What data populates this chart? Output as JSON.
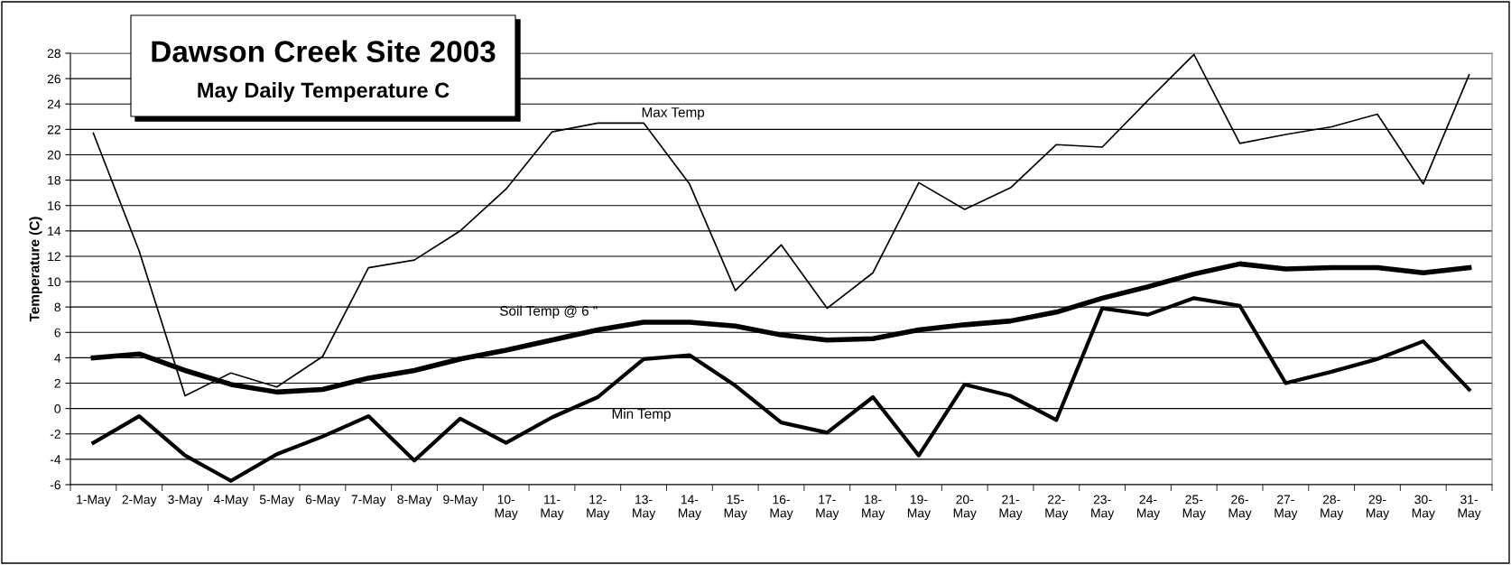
{
  "chart_data": {
    "type": "line",
    "title": "Dawson Creek Site 2003",
    "subtitle": "May Daily Temperature C",
    "ylabel": "Temperature (C)",
    "categories": [
      "1-May",
      "2-May",
      "3-May",
      "4-May",
      "5-May",
      "6-May",
      "7-May",
      "8-May",
      "9-May",
      "10-May",
      "11-May",
      "12-May",
      "13-May",
      "14-May",
      "15-May",
      "16-May",
      "17-May",
      "18-May",
      "19-May",
      "20-May",
      "21-May",
      "22-May",
      "23-May",
      "24-May",
      "25-May",
      "26-May",
      "27-May",
      "28-May",
      "29-May",
      "30-May",
      "31-May"
    ],
    "series": [
      {
        "name": "Max Temp",
        "color": "#000000",
        "values": [
          21.7,
          12.4,
          1.0,
          2.8,
          1.7,
          4.1,
          11.1,
          11.7,
          14.0,
          17.3,
          21.8,
          22.5,
          22.5,
          17.7,
          9.3,
          12.9,
          7.9,
          10.7,
          17.8,
          15.7,
          17.4,
          20.8,
          20.6,
          24.3,
          27.9,
          20.9,
          21.6,
          22.2,
          23.2,
          17.7,
          26.3
        ]
      },
      {
        "name": "Soil Temp @ 6 \"",
        "color": "#000000",
        "values": [
          4.0,
          4.3,
          3.0,
          1.9,
          1.3,
          1.5,
          2.4,
          3.0,
          3.9,
          4.6,
          5.4,
          6.2,
          6.8,
          6.8,
          6.5,
          5.8,
          5.4,
          5.5,
          6.2,
          6.6,
          6.9,
          7.6,
          8.7,
          9.6,
          10.6,
          11.4,
          11.0,
          11.1,
          11.1,
          10.7,
          11.1
        ]
      },
      {
        "name": "Min Temp",
        "color": "#000000",
        "values": [
          -2.7,
          -0.6,
          -3.7,
          -5.7,
          -3.6,
          -2.2,
          -0.6,
          -4.1,
          -0.8,
          -2.7,
          -0.7,
          0.9,
          3.9,
          4.2,
          1.8,
          -1.1,
          -1.9,
          0.9,
          -3.7,
          1.9,
          1.0,
          -0.9,
          7.9,
          7.4,
          8.7,
          8.1,
          2.0,
          2.9,
          3.9,
          5.3,
          1.5
        ]
      }
    ],
    "ylim": [
      -6,
      28
    ],
    "yticks": [
      -6,
      -4,
      -2,
      0,
      2,
      4,
      6,
      8,
      10,
      12,
      14,
      16,
      18,
      20,
      22,
      24,
      26,
      28
    ],
    "grid": "y",
    "legend": false,
    "marker": "none",
    "line_style": "solid"
  }
}
